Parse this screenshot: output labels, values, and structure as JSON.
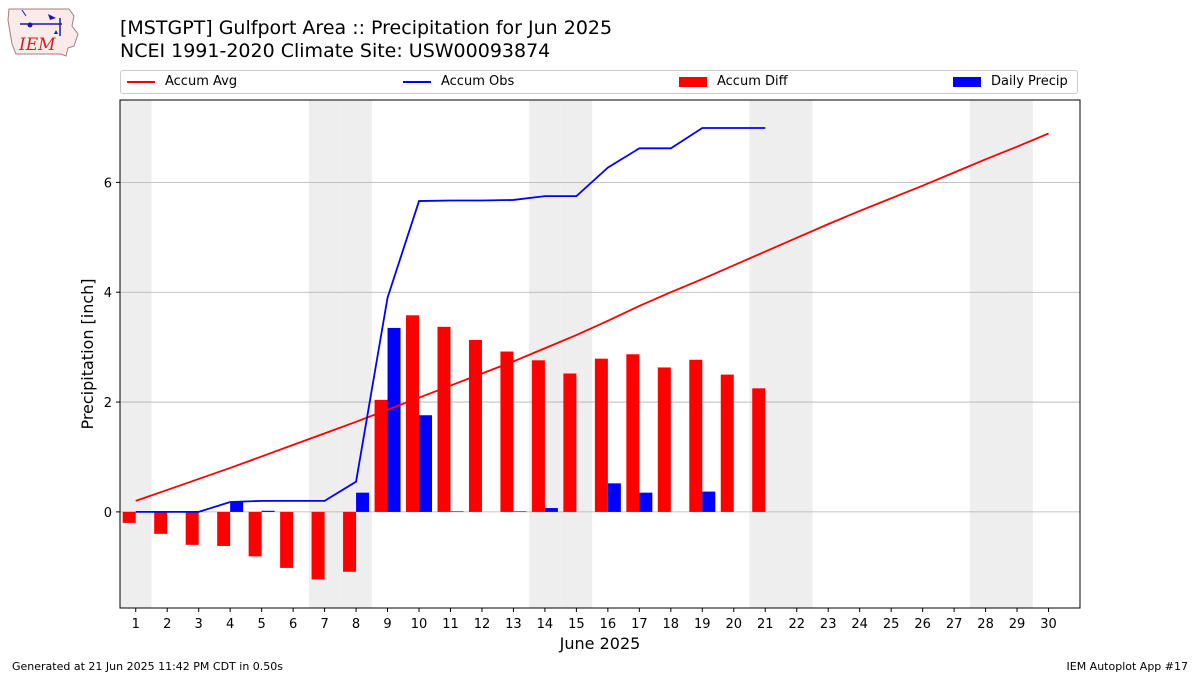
{
  "title": "[MSTGPT] Gulfport Area :: Precipitation for Jun 2025",
  "subtitle": "NCEI 1991-2020 Climate Site: USW00093874",
  "logo_text": "IEM",
  "footer_left": "Generated at 21 Jun 2025 11:42 PM CDT in 0.50s",
  "footer_right": "IEM Autoplot App #17",
  "colors": {
    "avg": "#ff0000",
    "obs": "#0000ff",
    "diff": "#ff0000",
    "daily": "#0000ff",
    "weekend": "#eeeeee",
    "grid": "#b0b0b0"
  },
  "legend": [
    {
      "label": "Accum Avg",
      "kind": "line",
      "color": "#ff0000"
    },
    {
      "label": "Accum Obs",
      "kind": "line",
      "color": "#0000ff"
    },
    {
      "label": "Accum Diff",
      "kind": "bar",
      "color": "#ff0000"
    },
    {
      "label": "Daily Precip",
      "kind": "bar",
      "color": "#0000ff"
    }
  ],
  "chart_data": {
    "type": "bar",
    "xlabel": "June 2025",
    "ylabel": "Precipitation [inch]",
    "xlim": [
      0.5,
      31
    ],
    "ylim": [
      -1.75,
      7.5
    ],
    "x_ticks": [
      1,
      2,
      3,
      4,
      5,
      6,
      7,
      8,
      9,
      10,
      11,
      12,
      13,
      14,
      15,
      16,
      17,
      18,
      19,
      20,
      21,
      22,
      23,
      24,
      25,
      26,
      27,
      28,
      29,
      30
    ],
    "y_ticks": [
      0,
      2,
      4,
      6
    ],
    "grid": "horizontal",
    "weekend_days": [
      1,
      7,
      8,
      14,
      15,
      21,
      22,
      28,
      29
    ],
    "series": [
      {
        "name": "Accum Avg",
        "kind": "line",
        "x": [
          1,
          2,
          3,
          4,
          5,
          6,
          7,
          8,
          9,
          10,
          11,
          12,
          13,
          14,
          15,
          16,
          17,
          18,
          19,
          20,
          21,
          22,
          23,
          24,
          25,
          26,
          27,
          28,
          29,
          30
        ],
        "values": [
          0.2,
          0.4,
          0.6,
          0.8,
          1.01,
          1.22,
          1.43,
          1.64,
          1.86,
          2.08,
          2.3,
          2.52,
          2.74,
          2.98,
          3.22,
          3.48,
          3.75,
          4.0,
          4.24,
          4.49,
          4.74,
          4.99,
          5.24,
          5.48,
          5.71,
          5.94,
          6.18,
          6.42,
          6.65,
          6.89
        ]
      },
      {
        "name": "Accum Obs",
        "kind": "line",
        "x": [
          1,
          2,
          3,
          4,
          5,
          6,
          7,
          8,
          9,
          10,
          11,
          12,
          13,
          14,
          15,
          16,
          17,
          18,
          19,
          20,
          21
        ],
        "values": [
          0.0,
          0.0,
          0.0,
          0.18,
          0.2,
          0.2,
          0.2,
          0.55,
          3.9,
          5.66,
          5.67,
          5.67,
          5.68,
          5.75,
          5.75,
          6.27,
          6.62,
          6.62,
          6.99,
          6.99,
          6.99
        ]
      },
      {
        "name": "Accum Diff",
        "kind": "bar",
        "x": [
          1,
          2,
          3,
          4,
          5,
          6,
          7,
          8,
          9,
          10,
          11,
          12,
          13,
          14,
          15,
          16,
          17,
          18,
          19,
          20,
          21
        ],
        "values": [
          -0.2,
          -0.4,
          -0.6,
          -0.62,
          -0.81,
          -1.02,
          -1.23,
          -1.09,
          2.04,
          3.58,
          3.37,
          3.13,
          2.92,
          2.76,
          2.52,
          2.79,
          2.87,
          2.63,
          2.77,
          2.5,
          2.25
        ]
      },
      {
        "name": "Daily Precip",
        "kind": "bar",
        "x": [
          1,
          2,
          3,
          4,
          5,
          6,
          7,
          8,
          9,
          10,
          11,
          12,
          13,
          14,
          15,
          16,
          17,
          18,
          19,
          20,
          21
        ],
        "values": [
          0.0,
          0.0,
          0.0,
          0.18,
          0.02,
          0.0,
          0.0,
          0.35,
          3.35,
          1.76,
          0.01,
          0.0,
          0.01,
          0.07,
          0.0,
          0.52,
          0.35,
          0.0,
          0.37,
          0.0,
          0.0
        ]
      }
    ]
  }
}
